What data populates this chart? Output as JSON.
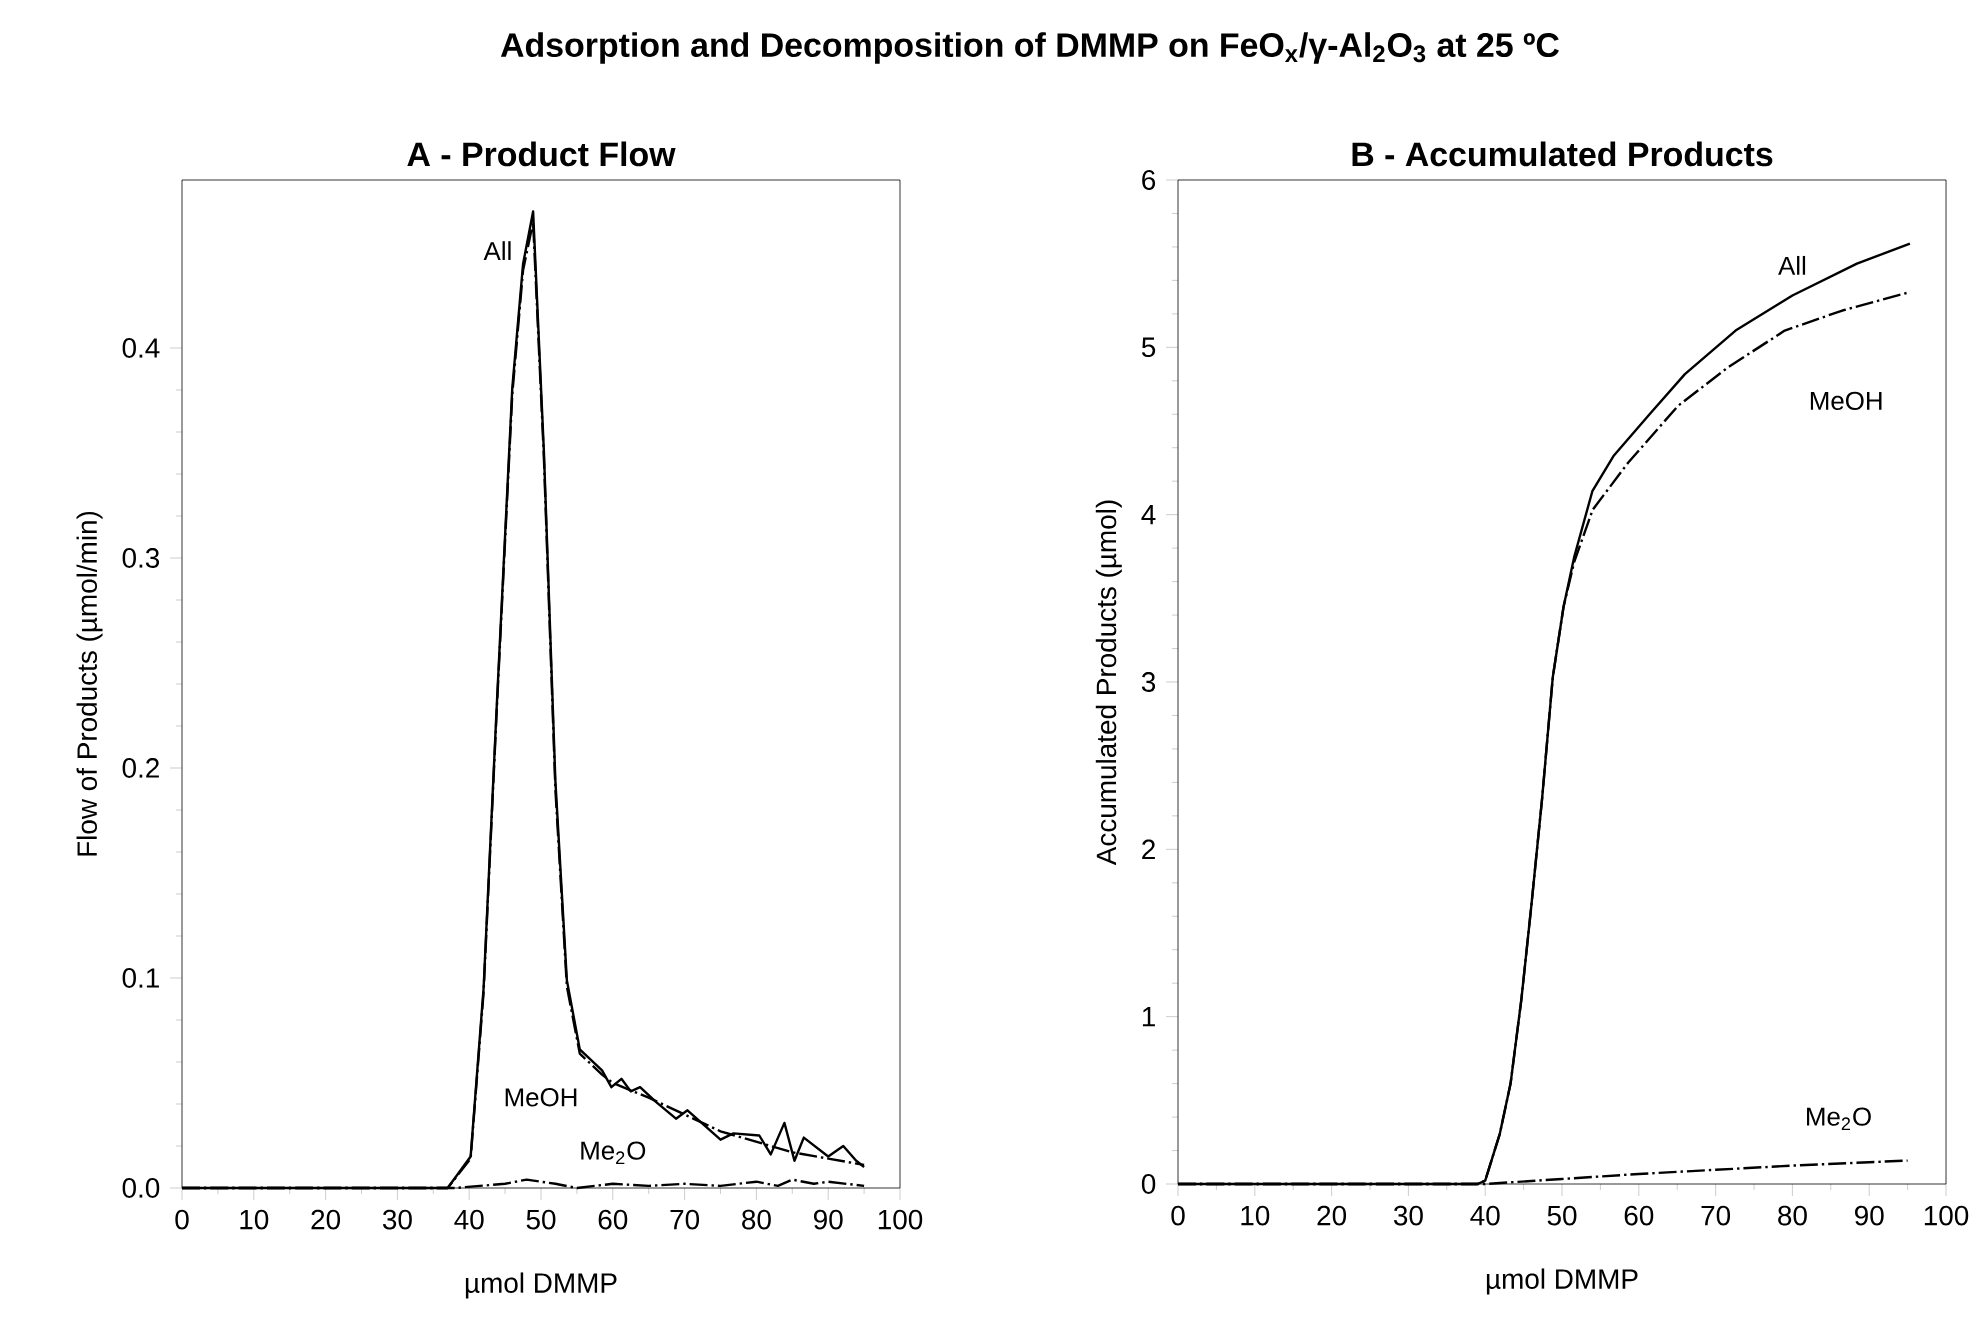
{
  "chart_data": [
    {
      "type": "line",
      "title": "A - Product Flow",
      "xlabel": "µmol DMMP",
      "ylabel": "Flow of Products (µmol/min)",
      "xlim": [
        0,
        100
      ],
      "ylim": [
        0,
        0.48
      ],
      "xticks": [
        0,
        10,
        20,
        30,
        40,
        50,
        60,
        70,
        80,
        90,
        100
      ],
      "yticks": [
        {
          "value": 0,
          "label": "0.0"
        },
        {
          "value": 0.1,
          "label": "0.1"
        },
        {
          "value": 0.2,
          "label": "0.2"
        },
        {
          "value": 0.3,
          "label": "0.3"
        },
        {
          "value": 0.4,
          "label": "0.4"
        }
      ],
      "annotations": [
        "Adsorption and Decomposition of DMMP on FeO$_{x}$/γ-Al$_{2}$O$_{3}$ at 25 ºC",
        "All",
        "MeOH",
        "Me$_{2}$O"
      ],
      "series": [
        {
          "color": "#000000",
          "line_style": "solid",
          "x": [
            0,
            37,
            40.2,
            42,
            43.8,
            46,
            47.5,
            48.9,
            50.4,
            52,
            53.6,
            55.4,
            58.5,
            59.8,
            61.2,
            62.5,
            63.8,
            66,
            68.8,
            70.4,
            75,
            76.8,
            80.4,
            82,
            83.9,
            85.3,
            86.6,
            90,
            92.1,
            93.9,
            95
          ],
          "values": [
            0,
            0,
            0.015,
            0.095,
            0.227,
            0.381,
            0.44,
            0.465,
            0.351,
            0.194,
            0.099,
            0.066,
            0.056,
            0.048,
            0.052,
            0.046,
            0.048,
            0.041,
            0.033,
            0.037,
            0.023,
            0.026,
            0.025,
            0.016,
            0.031,
            0.013,
            0.024,
            0.015,
            0.02,
            0.013,
            0.01
          ]
        },
        {
          "color": "#000000",
          "line_style": "dashed",
          "x": [
            0,
            37,
            40.2,
            42,
            43.8,
            46,
            47.5,
            48.9,
            50.4,
            52,
            53.6,
            55.4,
            58.5,
            60,
            65,
            70,
            75,
            80,
            85,
            90,
            95
          ],
          "values": [
            0,
            0,
            0.014,
            0.093,
            0.225,
            0.378,
            0.437,
            0.46,
            0.348,
            0.19,
            0.096,
            0.064,
            0.054,
            0.05,
            0.043,
            0.035,
            0.027,
            0.022,
            0.017,
            0.014,
            0.011
          ]
        },
        {
          "color": "#000000",
          "line_style": "dashed",
          "x": [
            0,
            38,
            45,
            48,
            52,
            55,
            60,
            65,
            70,
            75,
            80,
            83,
            85,
            88,
            90,
            95
          ],
          "values": [
            0,
            0,
            0.002,
            0.004,
            0.002,
            0,
            0.002,
            0.001,
            0.002,
            0.001,
            0.003,
            0.001,
            0.004,
            0.002,
            0.003,
            0.001
          ]
        }
      ]
    },
    {
      "type": "line",
      "title": "B - Accumulated Products",
      "xlabel": "µmol DMMP",
      "ylabel": "Accumulated Products (µmol)",
      "xlim": [
        0,
        100
      ],
      "ylim": [
        0,
        6
      ],
      "xticks": [
        0,
        10,
        20,
        30,
        40,
        50,
        60,
        70,
        80,
        90,
        100
      ],
      "yticks": [
        0,
        1,
        2,
        3,
        4,
        5,
        6
      ],
      "annotations": [
        "All",
        "MeOH",
        "Me$_{2}$O"
      ],
      "series": [
        {
          "color": "#000000",
          "line_style": "solid",
          "x": [
            0,
            39,
            40,
            41.9,
            43.3,
            44.7,
            46,
            47.4,
            48.8,
            50.2,
            51.6,
            53.95,
            56.7,
            61.4,
            66,
            72.6,
            80,
            88.4,
            95.3
          ],
          "values": [
            0,
            0,
            0.02,
            0.3,
            0.6,
            1.1,
            1.66,
            2.3,
            3.03,
            3.45,
            3.75,
            4.14,
            4.35,
            4.6,
            4.84,
            5.1,
            5.31,
            5.5,
            5.62
          ]
        },
        {
          "color": "#000000",
          "line_style": "dashed",
          "x": [
            0,
            39,
            40,
            41.9,
            43.3,
            44.7,
            46,
            47.4,
            48.8,
            50.2,
            51.6,
            54,
            58.6,
            65.1,
            71.6,
            79,
            86.5,
            95.3
          ],
          "values": [
            0,
            0,
            0.02,
            0.3,
            0.6,
            1.1,
            1.66,
            2.3,
            3.03,
            3.45,
            3.72,
            4.03,
            4.31,
            4.65,
            4.88,
            5.1,
            5.22,
            5.33
          ]
        },
        {
          "color": "#000000",
          "line_style": "dashed",
          "x": [
            0,
            40,
            50,
            60,
            70,
            80,
            90,
            95
          ],
          "values": [
            0,
            0,
            0.03,
            0.06,
            0.085,
            0.11,
            0.13,
            0.14
          ]
        }
      ]
    }
  ]
}
